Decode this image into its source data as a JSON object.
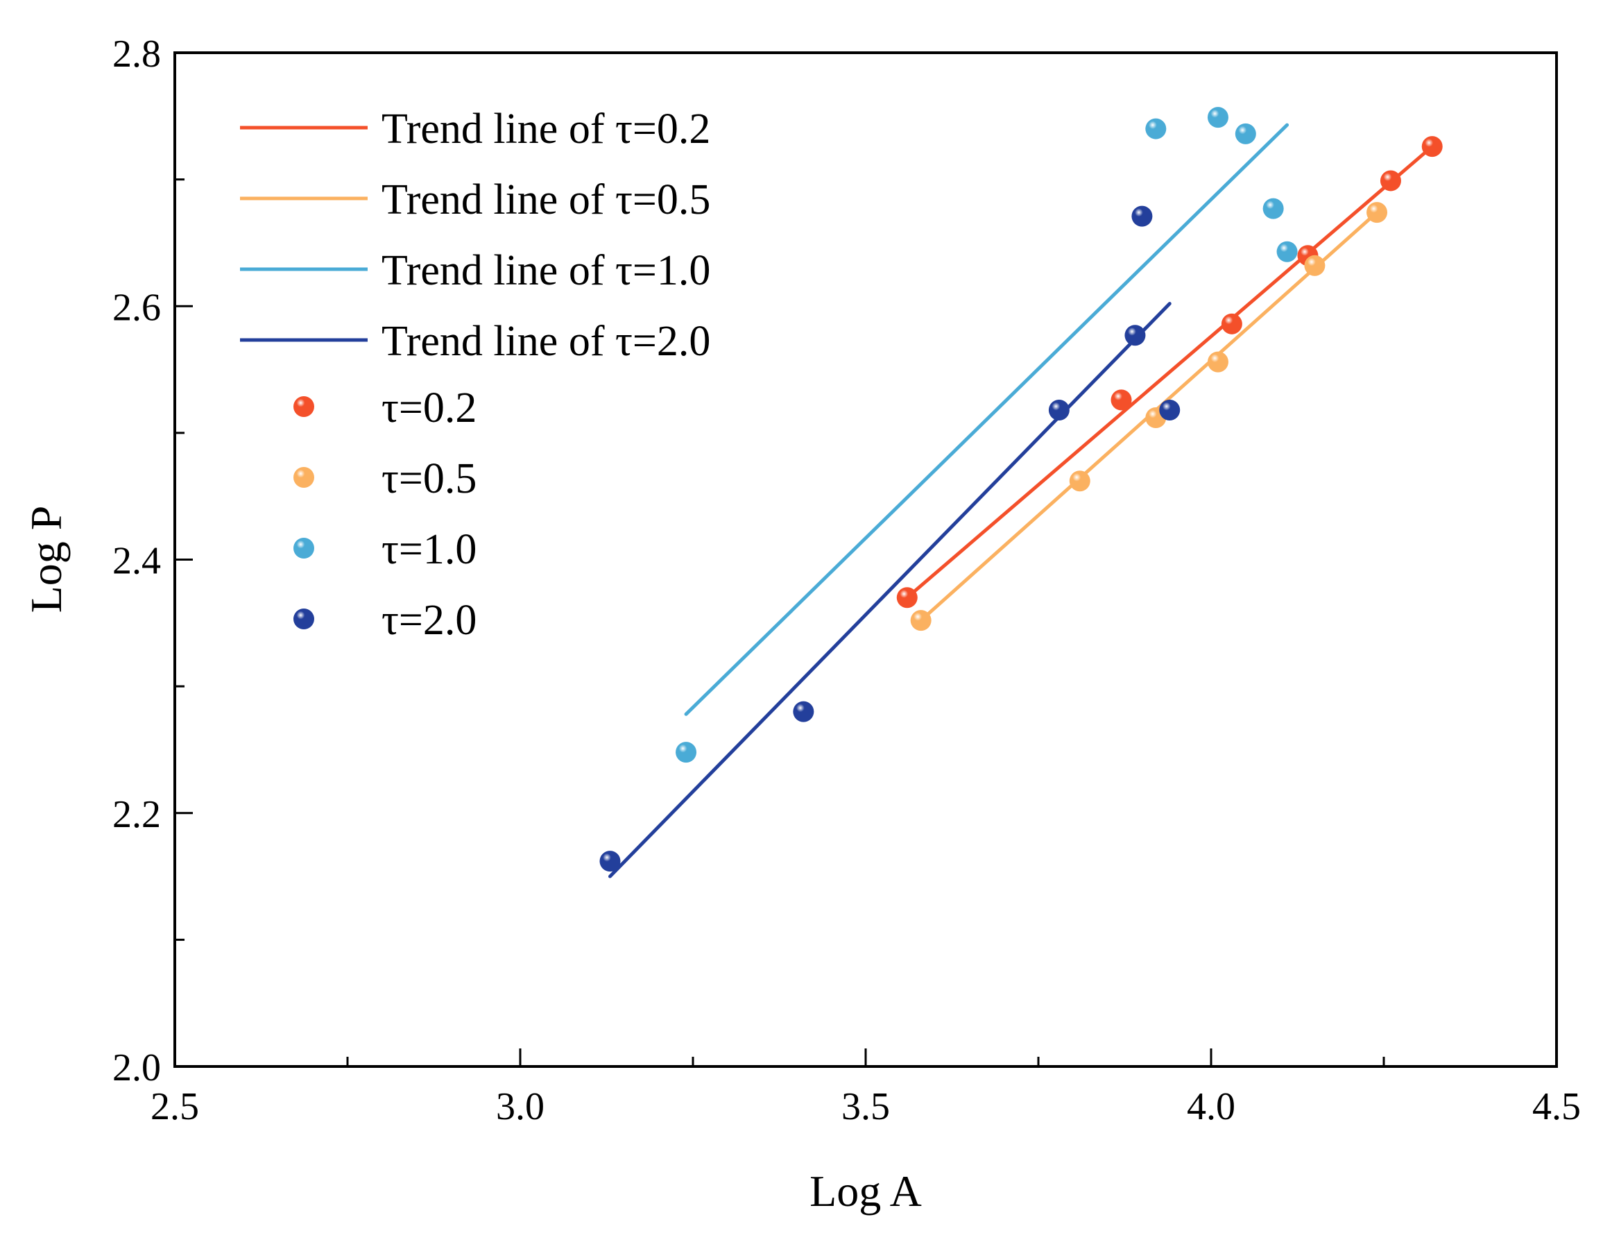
{
  "chart_data": {
    "type": "scatter",
    "title": "",
    "xlabel": "Log A",
    "ylabel": "Log P",
    "xlim": [
      2.5,
      4.5
    ],
    "ylim": [
      2.0,
      2.8
    ],
    "xticks": [
      2.5,
      3.0,
      3.5,
      4.0,
      4.5
    ],
    "xtick_labels": [
      "2.5",
      "3.0",
      "3.5",
      "4.0",
      "4.5"
    ],
    "yticks": [
      2.0,
      2.2,
      2.4,
      2.6,
      2.8
    ],
    "ytick_labels": [
      "2.0",
      "2.2",
      "2.4",
      "2.6",
      "2.8"
    ],
    "grid": false,
    "legend_position": "top-left",
    "series": [
      {
        "name": "τ=0.2",
        "trend_name": "Trend line of τ=0.2",
        "color": "#f4502a",
        "x": [
          3.56,
          3.87,
          4.03,
          4.14,
          4.26,
          4.32
        ],
        "y": [
          2.37,
          2.526,
          2.586,
          2.64,
          2.699,
          2.726
        ],
        "trend": [
          [
            3.56,
            2.37
          ],
          [
            4.32,
            2.726
          ]
        ]
      },
      {
        "name": "τ=0.5",
        "trend_name": "Trend line of τ=0.5",
        "color": "#fbb160",
        "x": [
          3.58,
          3.81,
          3.92,
          4.01,
          4.15,
          4.24
        ],
        "y": [
          2.352,
          2.462,
          2.512,
          2.556,
          2.632,
          2.674
        ],
        "trend": [
          [
            3.58,
            2.352
          ],
          [
            4.24,
            2.674
          ]
        ]
      },
      {
        "name": "τ=1.0",
        "trend_name": "Trend line of τ=1.0",
        "color": "#4aabd6",
        "x": [
          3.24,
          3.92,
          4.01,
          4.05,
          4.09,
          4.11
        ],
        "y": [
          2.248,
          2.74,
          2.749,
          2.736,
          2.677,
          2.643
        ],
        "trend": [
          [
            3.24,
            2.278
          ],
          [
            4.11,
            2.743
          ]
        ]
      },
      {
        "name": "τ=2.0",
        "trend_name": "Trend line of τ=2.0",
        "color": "#233f9b",
        "x": [
          3.13,
          3.41,
          3.78,
          3.89,
          3.9,
          3.94
        ],
        "y": [
          2.162,
          2.28,
          2.518,
          2.577,
          2.671,
          2.518
        ],
        "trend": [
          [
            3.13,
            2.15
          ],
          [
            3.94,
            2.602
          ]
        ]
      }
    ]
  }
}
